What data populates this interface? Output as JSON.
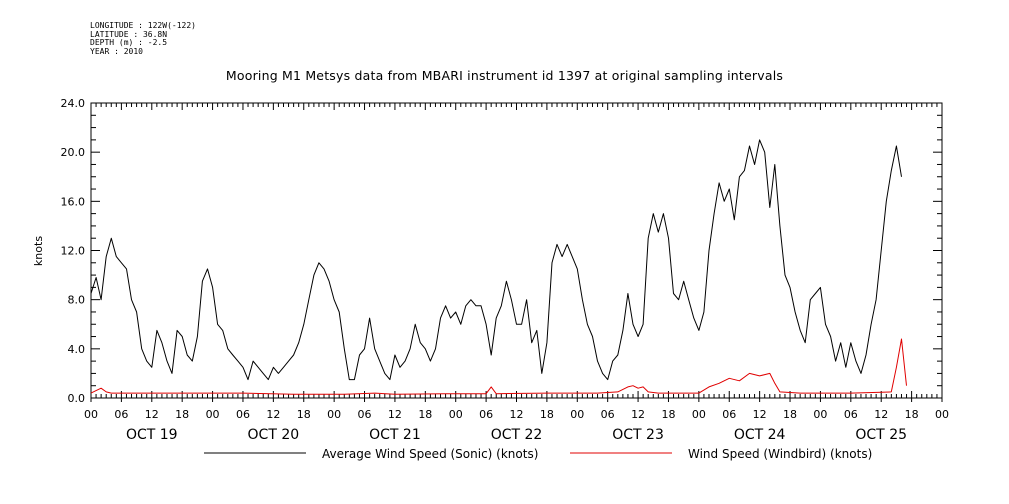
{
  "meta_lines": [
    "LONGITUDE : 122W(-122)",
    "LATITUDE : 36.8N",
    "DEPTH (m) : -2.5",
    "YEAR : 2010"
  ],
  "colors": {
    "sonic": "#000000",
    "windbird": "#e00000",
    "axis": "#000000"
  },
  "chart_data": {
    "type": "line",
    "title": "Mooring M1 Metsys data from MBARI instrument id 1397 at original sampling intervals",
    "xlabel": "",
    "ylabel": "knots",
    "ylim": [
      0,
      24
    ],
    "y_ticks": [
      "0.0",
      "4.0",
      "8.0",
      "12.0",
      "16.0",
      "20.0",
      "24.0"
    ],
    "x_range_hours": [
      0,
      168
    ],
    "x_hour_ticks": [
      "00",
      "06",
      "12",
      "18",
      "00",
      "06",
      "12",
      "18",
      "00",
      "06",
      "12",
      "18",
      "00",
      "06",
      "12",
      "18",
      "00",
      "06",
      "12",
      "18",
      "00",
      "06",
      "12",
      "18",
      "00",
      "06",
      "12",
      "18",
      "00"
    ],
    "day_labels": [
      "OCT 19",
      "OCT 20",
      "OCT 21",
      "OCT 22",
      "OCT 23",
      "OCT 24",
      "OCT 25"
    ],
    "grid": false,
    "legend_position": "bottom",
    "series": [
      {
        "name": "Average Wind Speed (Sonic) (knots)",
        "points": [
          [
            0,
            8.5
          ],
          [
            1,
            9.8
          ],
          [
            2,
            8.0
          ],
          [
            3,
            11.5
          ],
          [
            4,
            13.0
          ],
          [
            5,
            11.5
          ],
          [
            6,
            11.0
          ],
          [
            7,
            10.5
          ],
          [
            8,
            8.0
          ],
          [
            9,
            7.0
          ],
          [
            10,
            4.0
          ],
          [
            11,
            3.0
          ],
          [
            12,
            2.5
          ],
          [
            13,
            5.5
          ],
          [
            14,
            4.5
          ],
          [
            15,
            3.0
          ],
          [
            16,
            2.0
          ],
          [
            17,
            5.5
          ],
          [
            18,
            5.0
          ],
          [
            19,
            3.5
          ],
          [
            20,
            3.0
          ],
          [
            21,
            5.0
          ],
          [
            22,
            9.5
          ],
          [
            23,
            10.5
          ],
          [
            24,
            9.0
          ],
          [
            25,
            6.0
          ],
          [
            26,
            5.5
          ],
          [
            27,
            4.0
          ],
          [
            28,
            3.5
          ],
          [
            29,
            3.0
          ],
          [
            30,
            2.5
          ],
          [
            31,
            1.5
          ],
          [
            32,
            3.0
          ],
          [
            33,
            2.5
          ],
          [
            34,
            2.0
          ],
          [
            35,
            1.5
          ],
          [
            36,
            2.5
          ],
          [
            37,
            2.0
          ],
          [
            38,
            2.5
          ],
          [
            39,
            3.0
          ],
          [
            40,
            3.5
          ],
          [
            41,
            4.5
          ],
          [
            42,
            6.0
          ],
          [
            43,
            8.0
          ],
          [
            44,
            10.0
          ],
          [
            45,
            11.0
          ],
          [
            46,
            10.5
          ],
          [
            47,
            9.5
          ],
          [
            48,
            8.0
          ],
          [
            49,
            7.0
          ],
          [
            50,
            4.0
          ],
          [
            51,
            1.5
          ],
          [
            52,
            1.5
          ],
          [
            53,
            3.5
          ],
          [
            54,
            4.0
          ],
          [
            55,
            6.5
          ],
          [
            56,
            4.0
          ],
          [
            57,
            3.0
          ],
          [
            58,
            2.0
          ],
          [
            59,
            1.5
          ],
          [
            60,
            3.5
          ],
          [
            61,
            2.5
          ],
          [
            62,
            3.0
          ],
          [
            63,
            4.0
          ],
          [
            64,
            6.0
          ],
          [
            65,
            4.5
          ],
          [
            66,
            4.0
          ],
          [
            67,
            3.0
          ],
          [
            68,
            4.0
          ],
          [
            69,
            6.5
          ],
          [
            70,
            7.5
          ],
          [
            71,
            6.5
          ],
          [
            72,
            7.0
          ],
          [
            73,
            6.0
          ],
          [
            74,
            7.5
          ],
          [
            75,
            8.0
          ],
          [
            76,
            7.5
          ],
          [
            77,
            7.5
          ],
          [
            78,
            6.0
          ],
          [
            79,
            3.5
          ],
          [
            80,
            6.5
          ],
          [
            81,
            7.5
          ],
          [
            82,
            9.5
          ],
          [
            83,
            8.0
          ],
          [
            84,
            6.0
          ],
          [
            85,
            6.0
          ],
          [
            86,
            8.0
          ],
          [
            87,
            4.5
          ],
          [
            88,
            5.5
          ],
          [
            89,
            2.0
          ],
          [
            90,
            4.5
          ],
          [
            91,
            11.0
          ],
          [
            92,
            12.5
          ],
          [
            93,
            11.5
          ],
          [
            94,
            12.5
          ],
          [
            95,
            11.5
          ],
          [
            96,
            10.5
          ],
          [
            97,
            8.0
          ],
          [
            98,
            6.0
          ],
          [
            99,
            5.0
          ],
          [
            100,
            3.0
          ],
          [
            101,
            2.0
          ],
          [
            102,
            1.5
          ],
          [
            103,
            3.0
          ],
          [
            104,
            3.5
          ],
          [
            105,
            5.5
          ],
          [
            106,
            8.5
          ],
          [
            107,
            6.0
          ],
          [
            108,
            5.0
          ],
          [
            109,
            6.0
          ],
          [
            110,
            13.0
          ],
          [
            111,
            15.0
          ],
          [
            112,
            13.5
          ],
          [
            113,
            15.0
          ],
          [
            114,
            13.0
          ],
          [
            115,
            8.5
          ],
          [
            116,
            8.0
          ],
          [
            117,
            9.5
          ],
          [
            118,
            8.0
          ],
          [
            119,
            6.5
          ],
          [
            120,
            5.5
          ],
          [
            121,
            7.0
          ],
          [
            122,
            12.0
          ],
          [
            123,
            15.0
          ],
          [
            124,
            17.5
          ],
          [
            125,
            16.0
          ],
          [
            126,
            17.0
          ],
          [
            127,
            14.5
          ],
          [
            128,
            18.0
          ],
          [
            129,
            18.5
          ],
          [
            130,
            20.5
          ],
          [
            131,
            19.0
          ],
          [
            132,
            21.0
          ],
          [
            133,
            20.0
          ],
          [
            134,
            15.5
          ],
          [
            135,
            19.0
          ],
          [
            136,
            14.0
          ],
          [
            137,
            10.0
          ],
          [
            138,
            9.0
          ],
          [
            139,
            7.0
          ],
          [
            140,
            5.5
          ],
          [
            141,
            4.5
          ],
          [
            142,
            8.0
          ],
          [
            143,
            8.5
          ],
          [
            144,
            9.0
          ],
          [
            145,
            6.0
          ],
          [
            146,
            5.0
          ],
          [
            147,
            3.0
          ],
          [
            148,
            4.5
          ],
          [
            149,
            2.5
          ],
          [
            150,
            4.5
          ],
          [
            151,
            3.0
          ],
          [
            152,
            2.0
          ],
          [
            153,
            3.5
          ],
          [
            154,
            6.0
          ],
          [
            155,
            8.0
          ],
          [
            156,
            12.0
          ],
          [
            157,
            16.0
          ],
          [
            158,
            18.5
          ],
          [
            159,
            20.5
          ],
          [
            160,
            18.0
          ]
        ]
      },
      {
        "name": "Wind Speed (Windbird) (knots)",
        "points": [
          [
            0,
            0.4
          ],
          [
            1,
            0.6
          ],
          [
            2,
            0.8
          ],
          [
            3,
            0.5
          ],
          [
            4,
            0.4
          ],
          [
            10,
            0.4
          ],
          [
            20,
            0.4
          ],
          [
            30,
            0.4
          ],
          [
            40,
            0.3
          ],
          [
            50,
            0.3
          ],
          [
            56,
            0.4
          ],
          [
            60,
            0.3
          ],
          [
            70,
            0.35
          ],
          [
            78,
            0.35
          ],
          [
            79,
            0.9
          ],
          [
            80,
            0.35
          ],
          [
            90,
            0.4
          ],
          [
            100,
            0.4
          ],
          [
            104,
            0.5
          ],
          [
            106,
            0.9
          ],
          [
            107,
            1.0
          ],
          [
            108,
            0.8
          ],
          [
            109,
            0.9
          ],
          [
            110,
            0.5
          ],
          [
            112,
            0.4
          ],
          [
            120,
            0.4
          ],
          [
            122,
            0.9
          ],
          [
            124,
            1.2
          ],
          [
            126,
            1.6
          ],
          [
            128,
            1.4
          ],
          [
            130,
            2.0
          ],
          [
            132,
            1.8
          ],
          [
            134,
            2.0
          ],
          [
            135,
            1.2
          ],
          [
            136,
            0.5
          ],
          [
            140,
            0.4
          ],
          [
            150,
            0.4
          ],
          [
            158,
            0.5
          ],
          [
            159,
            2.5
          ],
          [
            160,
            4.8
          ],
          [
            161,
            1.0
          ]
        ]
      }
    ]
  }
}
